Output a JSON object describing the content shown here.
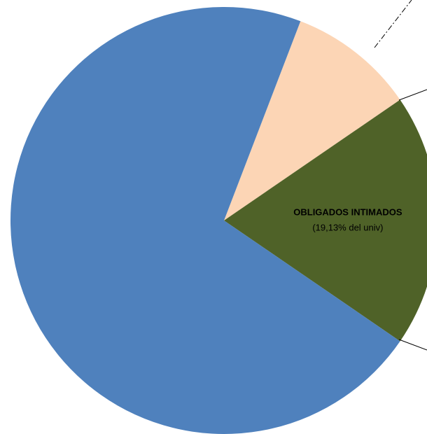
{
  "chart_data": {
    "type": "pie",
    "categories": [
      null,
      "OBLIGADOS INTIMADOS",
      null
    ],
    "values": [
      9.6,
      19.13,
      71.27
    ],
    "value_labels": [
      null,
      "(19,13% del univ)",
      null
    ],
    "colors": [
      "#fcd5b5",
      "#4f6228",
      "#4f81bd"
    ]
  }
}
